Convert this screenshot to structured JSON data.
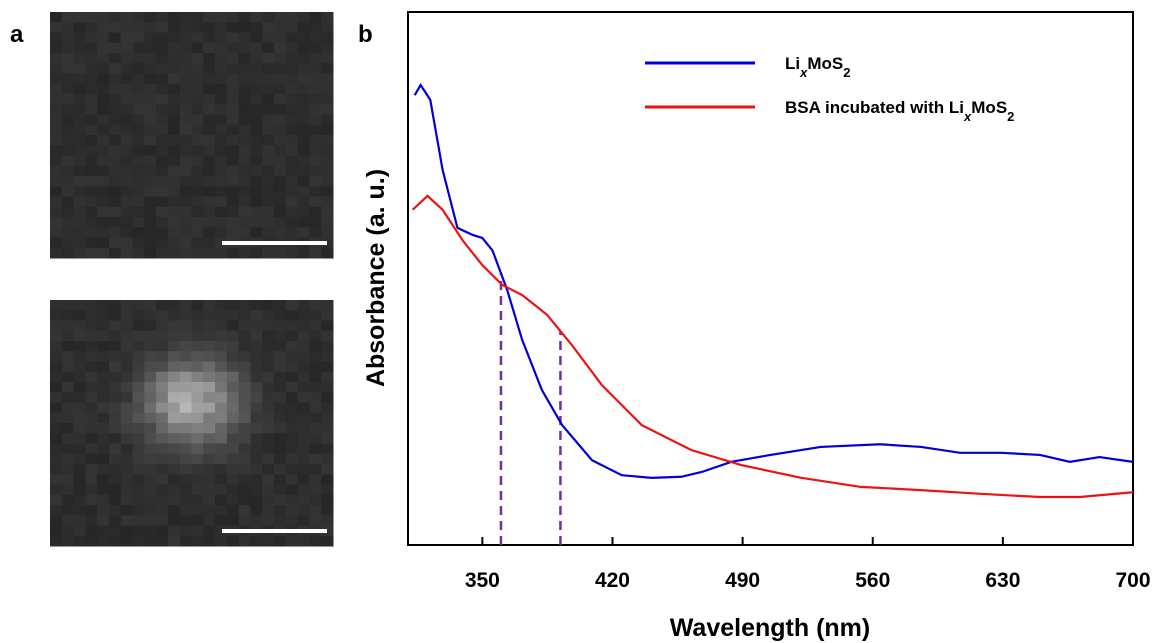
{
  "panel_labels": [
    "a",
    "b"
  ],
  "chart_data": {
    "type": "line",
    "xlabel": "Wavelength (nm)",
    "ylabel": "Absorbance (a. u.)",
    "xlim": [
      310,
      700
    ],
    "ylim": [
      0,
      1
    ],
    "xticks": [
      350,
      420,
      490,
      560,
      630,
      700
    ],
    "legend": "top-right",
    "reference_lines": [
      360,
      392
    ],
    "series": [
      {
        "name": "LixMoS2",
        "color": "#0000dd",
        "x": [
          313.6,
          316.8,
          322,
          328.6,
          336.6,
          344.6,
          350,
          355.4,
          363.4,
          371.4,
          382,
          392.9,
          409,
          425,
          441,
          457,
          468,
          484,
          505,
          532,
          564,
          586,
          607,
          629,
          650,
          666,
          682,
          700
        ],
        "values": [
          0.844,
          0.863,
          0.835,
          0.704,
          0.595,
          0.582,
          0.576,
          0.553,
          0.478,
          0.385,
          0.291,
          0.225,
          0.159,
          0.131,
          0.126,
          0.128,
          0.137,
          0.156,
          0.169,
          0.184,
          0.189,
          0.184,
          0.173,
          0.173,
          0.169,
          0.156,
          0.165,
          0.156
        ]
      },
      {
        "name": "BSA incubated with LixMoS2",
        "color": "#ee1111",
        "x": [
          312.5,
          320.5,
          328.6,
          339.3,
          350,
          360.7,
          371.4,
          384.8,
          398.2,
          414.3,
          435.7,
          462.5,
          489.3,
          521.5,
          553.6,
          585.8,
          618,
          650,
          671.4,
          700
        ],
        "values": [
          0.629,
          0.655,
          0.629,
          0.572,
          0.525,
          0.488,
          0.469,
          0.432,
          0.375,
          0.3,
          0.225,
          0.178,
          0.15,
          0.126,
          0.109,
          0.103,
          0.096,
          0.09,
          0.09,
          0.099
        ]
      }
    ]
  }
}
